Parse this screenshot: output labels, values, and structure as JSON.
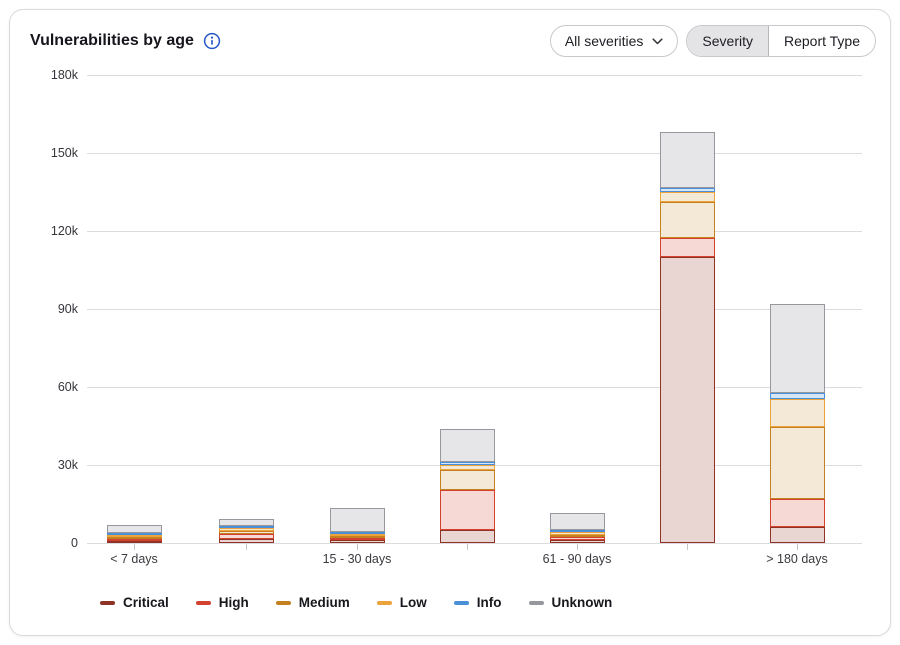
{
  "header": {
    "title": "Vulnerabilities by age",
    "severity_filter": {
      "label": "All severities"
    },
    "view_toggle": {
      "options": [
        "Severity",
        "Report Type"
      ],
      "selected": "Severity"
    }
  },
  "chart_data": {
    "type": "bar",
    "stacked": true,
    "title": "Vulnerabilities by age",
    "xlabel": "",
    "ylabel": "",
    "ylim": [
      0,
      180000
    ],
    "ytick_values": [
      0,
      30000,
      60000,
      90000,
      120000,
      150000,
      180000
    ],
    "ytick_labels": [
      "0",
      "30k",
      "60k",
      "90k",
      "120k",
      "150k",
      "180k"
    ],
    "x_tick_labels": [
      "< 7 days",
      "",
      "15 - 30 days",
      "",
      "61 - 90 days",
      "",
      "> 180 days"
    ],
    "grid": "horizontal",
    "legend_position": "bottom",
    "series": [
      {
        "name": "Critical",
        "color": "#8e3326",
        "fill": "#e9d5d1",
        "values": [
          300,
          1500,
          1000,
          5000,
          1200,
          110000,
          6000
        ]
      },
      {
        "name": "High",
        "color": "#d2422f",
        "fill": "#f6d9d4",
        "values": [
          400,
          1900,
          1000,
          15500,
          1200,
          7500,
          11000
        ]
      },
      {
        "name": "Medium",
        "color": "#c5811f",
        "fill": "#f4e9d7",
        "values": [
          500,
          1200,
          800,
          7500,
          800,
          13500,
          27500
        ]
      },
      {
        "name": "Low",
        "color": "#eda33b",
        "fill": "#f4e9d7",
        "values": [
          600,
          1200,
          800,
          2000,
          1200,
          4000,
          11000
        ]
      },
      {
        "name": "Info",
        "color": "#4a90d9",
        "fill": "#d7e6f7",
        "values": [
          600,
          400,
          800,
          1200,
          600,
          1500,
          2300
        ]
      },
      {
        "name": "Unknown",
        "color": "#96989d",
        "fill": "#e6e6e8",
        "values": [
          3000,
          2700,
          9200,
          12500,
          6200,
          21500,
          34000
        ]
      }
    ]
  },
  "colors": {
    "accent_blue": "#2457c5",
    "grid": "#dcdcdf",
    "selected_segment_bg": "#e4e4e6"
  }
}
